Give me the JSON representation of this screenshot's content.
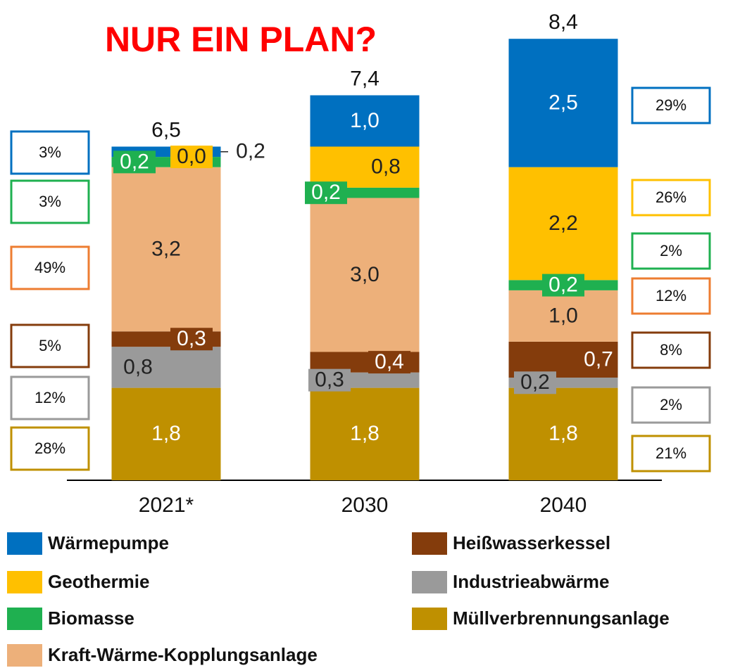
{
  "chart_data": {
    "type": "stacked_bar",
    "title": "NUR EIN PLAN?",
    "categories": [
      "2021*",
      "2030",
      "2040"
    ],
    "ylim": [
      0,
      9
    ],
    "totals": [
      6.5,
      7.4,
      8.4
    ],
    "total_labels": [
      "6,5",
      "7,4",
      "8,4"
    ],
    "series": [
      {
        "name": "Müllverbrennungsanlage",
        "color": "#bf9000",
        "values": [
          1.8,
          1.8,
          1.8
        ],
        "value_labels": [
          "1,8",
          "1,8",
          "1,8"
        ],
        "shares": [
          28,
          null,
          21
        ],
        "share_labels": [
          "28%",
          null,
          "21%"
        ]
      },
      {
        "name": "Industrieabwärme",
        "color": "#9a9a9a",
        "values": [
          0.8,
          0.3,
          0.2
        ],
        "value_labels": [
          "0,8",
          "0,3",
          "0,2"
        ],
        "shares": [
          12,
          null,
          2
        ],
        "share_labels": [
          "12%",
          null,
          "2%"
        ]
      },
      {
        "name": "Heißwasserkessel",
        "color": "#843c0c",
        "values": [
          0.3,
          0.4,
          0.7
        ],
        "value_labels": [
          "0,3",
          "0,4",
          "0,7"
        ],
        "shares": [
          5,
          null,
          8
        ],
        "share_labels": [
          "5%",
          null,
          "8%"
        ]
      },
      {
        "name": "Kraft-Wärme-Kopplungsanlage",
        "color": "#edb07a",
        "values": [
          3.2,
          3.0,
          1.0
        ],
        "value_labels": [
          "3,2",
          "3,0",
          "1,0"
        ],
        "shares": [
          49,
          null,
          12
        ],
        "share_labels": [
          "49%",
          null,
          "12%"
        ]
      },
      {
        "name": "Biomasse",
        "color": "#1fb050",
        "values": [
          0.2,
          0.2,
          0.2
        ],
        "value_labels": [
          "0,2",
          "0,2",
          "0,2"
        ],
        "shares": [
          3,
          null,
          2
        ],
        "share_labels": [
          "3%",
          null,
          "2%"
        ]
      },
      {
        "name": "Geothermie",
        "color": "#ffc000",
        "values": [
          0.0,
          0.8,
          2.2
        ],
        "value_labels": [
          "0,0",
          "0,8",
          "2,2"
        ],
        "shares": [
          null,
          null,
          26
        ],
        "share_labels": [
          null,
          null,
          "26%"
        ]
      },
      {
        "name": "Wärmepumpe",
        "color": "#0070c0",
        "values": [
          0.2,
          1.0,
          2.5
        ],
        "value_labels": [
          "0,2",
          "1,0",
          "2,5"
        ],
        "shares": [
          3,
          null,
          29
        ],
        "share_labels": [
          "3%",
          null,
          "29%"
        ]
      }
    ]
  }
}
